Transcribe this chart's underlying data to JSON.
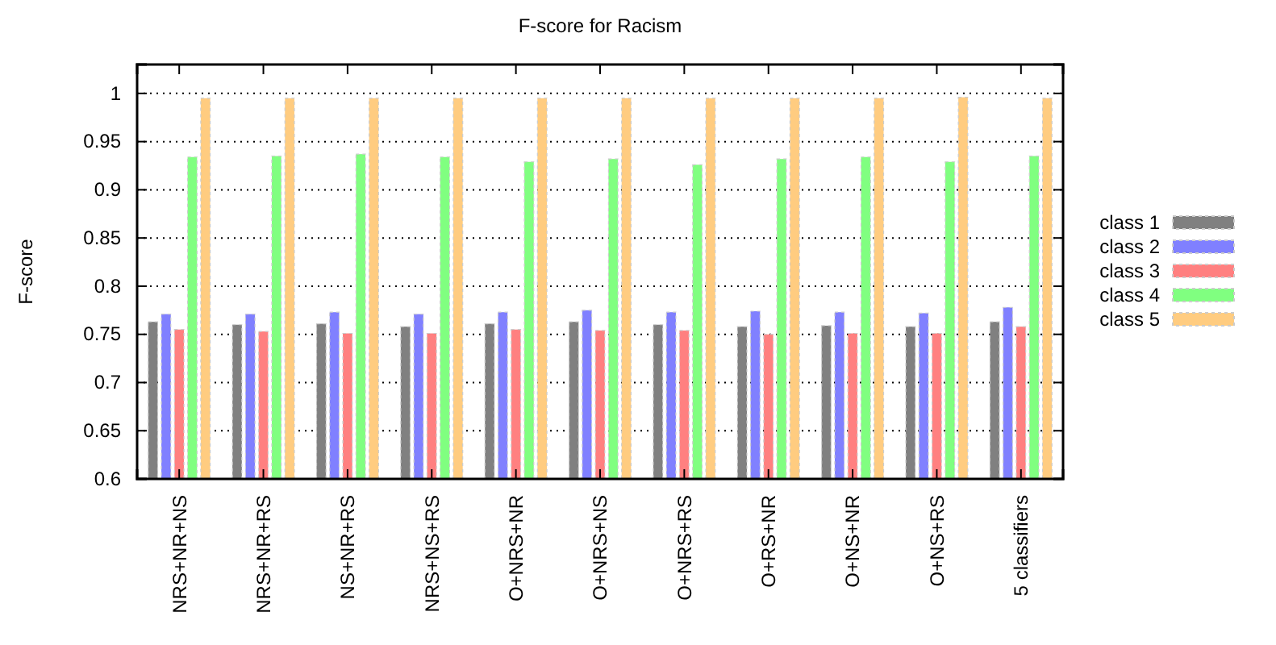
{
  "chart_data": {
    "type": "bar",
    "title": "F-score for Racism",
    "ylabel": "F-score",
    "categories": [
      "NRS+NR+NS",
      "NRS+NR+RS",
      "NS+NR+RS",
      "NRS+NS+RS",
      "O+NRS+NR",
      "O+NRS+NS",
      "O+NRS+RS",
      "O+RS+NR",
      "O+NS+NR",
      "O+NS+RS",
      "5 classifiers"
    ],
    "series": [
      {
        "name": "class 1",
        "color": "#808080",
        "values": [
          0.763,
          0.76,
          0.761,
          0.758,
          0.761,
          0.763,
          0.76,
          0.758,
          0.759,
          0.758,
          0.763
        ]
      },
      {
        "name": "class 2",
        "color": "#8080ff",
        "values": [
          0.771,
          0.771,
          0.773,
          0.771,
          0.773,
          0.775,
          0.773,
          0.774,
          0.773,
          0.772,
          0.778
        ]
      },
      {
        "name": "class 3",
        "color": "#ff8080",
        "values": [
          0.755,
          0.753,
          0.751,
          0.751,
          0.755,
          0.754,
          0.754,
          0.75,
          0.751,
          0.751,
          0.758
        ]
      },
      {
        "name": "class 4",
        "color": "#80ff80",
        "values": [
          0.934,
          0.935,
          0.937,
          0.934,
          0.929,
          0.932,
          0.926,
          0.932,
          0.934,
          0.929,
          0.935
        ]
      },
      {
        "name": "class 5",
        "color": "#ffcc80",
        "values": [
          0.995,
          0.995,
          0.995,
          0.995,
          0.995,
          0.995,
          0.995,
          0.995,
          0.995,
          0.996,
          0.995
        ]
      }
    ],
    "ylim": [
      0.6,
      1.03
    ],
    "yticks": [
      0.6,
      0.65,
      0.7,
      0.75,
      0.8,
      0.85,
      0.9,
      0.95,
      1
    ],
    "grid": "y",
    "legend": "right"
  }
}
